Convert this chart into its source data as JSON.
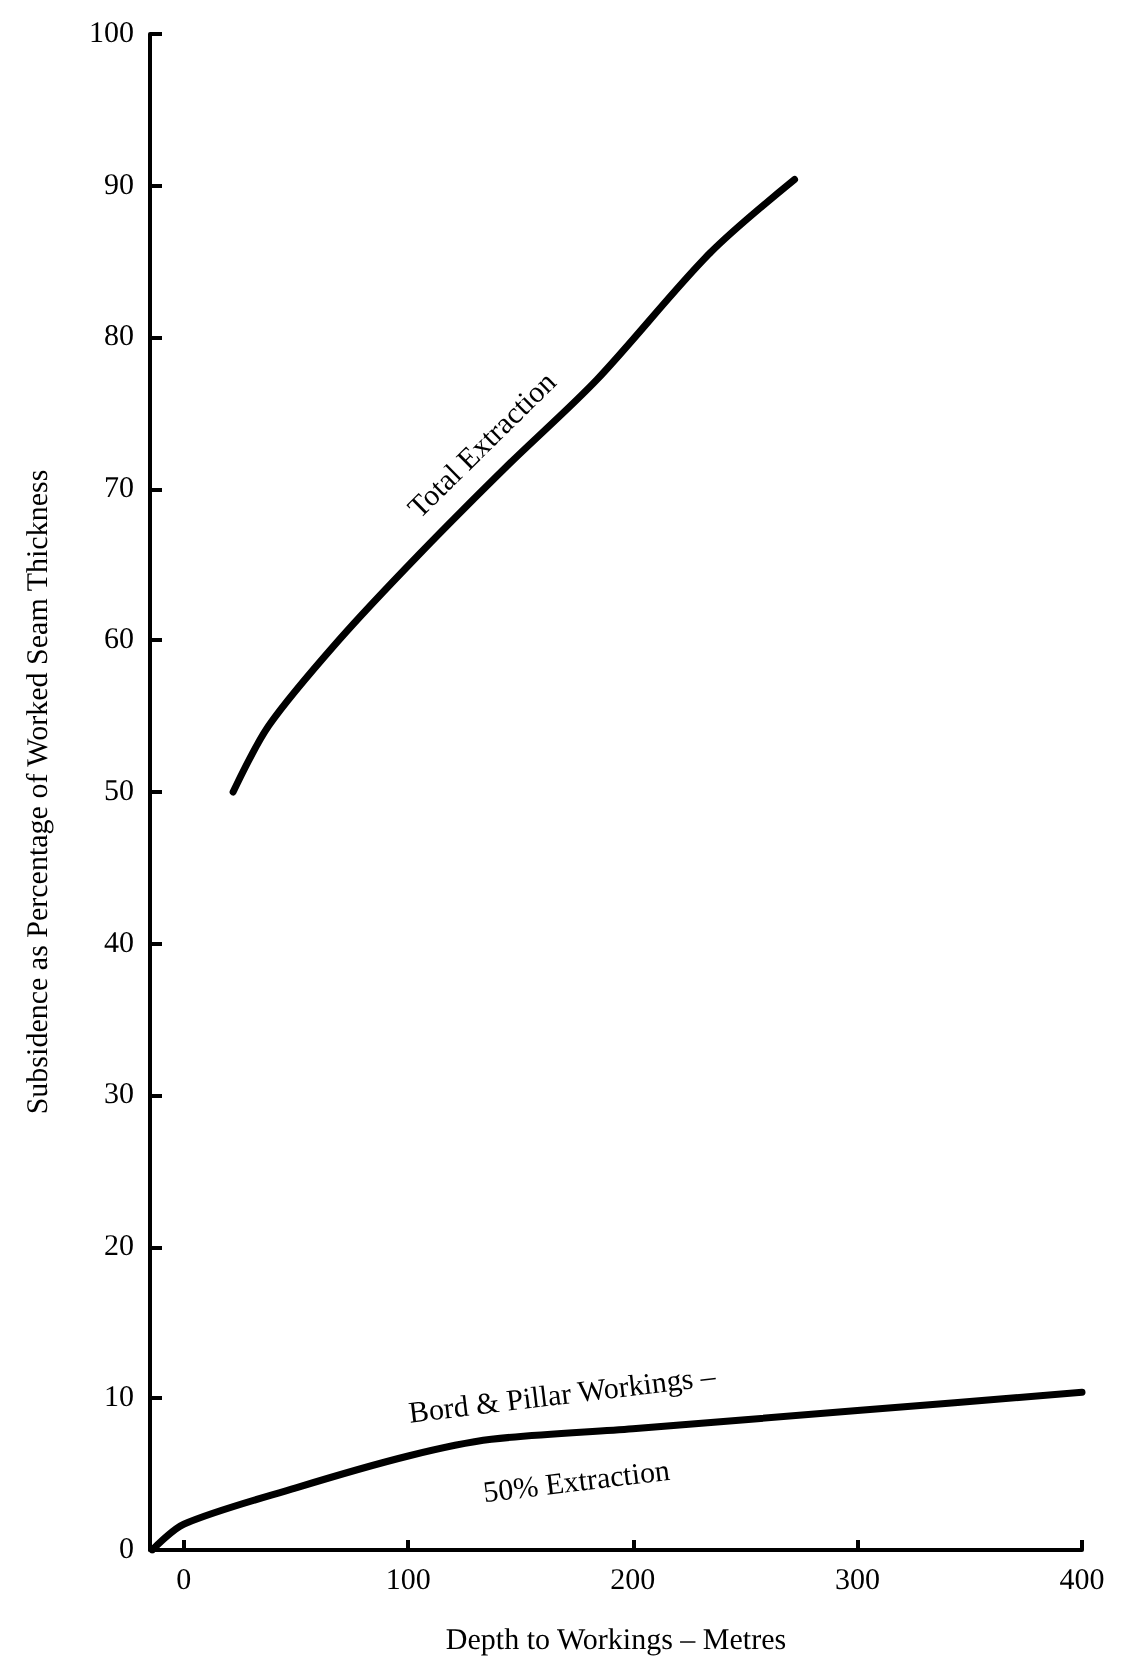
{
  "chart_data": {
    "type": "line",
    "xlabel": "Depth to Workings – Metres",
    "ylabel": "Subsidence as Percentage of Worked Seam Thickness",
    "xlim": [
      -15,
      400
    ],
    "xticks": [
      0,
      100,
      200,
      300,
      400
    ],
    "ylim": [
      0,
      100
    ],
    "yticks": [
      0,
      10,
      20,
      30,
      40,
      50,
      60,
      70,
      80,
      90,
      100
    ],
    "grid": false,
    "legend": false,
    "marker": "none",
    "line_style": "solid",
    "series": [
      {
        "name": "Total Extraction",
        "color": "#000000",
        "x": [
          22,
          38,
          69,
          105,
          144,
          184,
          234,
          272
        ],
        "values": [
          50,
          54.4,
          60,
          65.7,
          71.5,
          77.2,
          85.5,
          90.4
        ]
      },
      {
        "name": "Bord & Pillar Workings – 50% Extraction",
        "color": "#000000",
        "x": [
          -14,
          0,
          50,
          100,
          137,
          200,
          300,
          400
        ],
        "values": [
          0,
          1.7,
          4.1,
          6.2,
          7.3,
          8.0,
          9.2,
          10.4
        ]
      }
    ]
  }
}
